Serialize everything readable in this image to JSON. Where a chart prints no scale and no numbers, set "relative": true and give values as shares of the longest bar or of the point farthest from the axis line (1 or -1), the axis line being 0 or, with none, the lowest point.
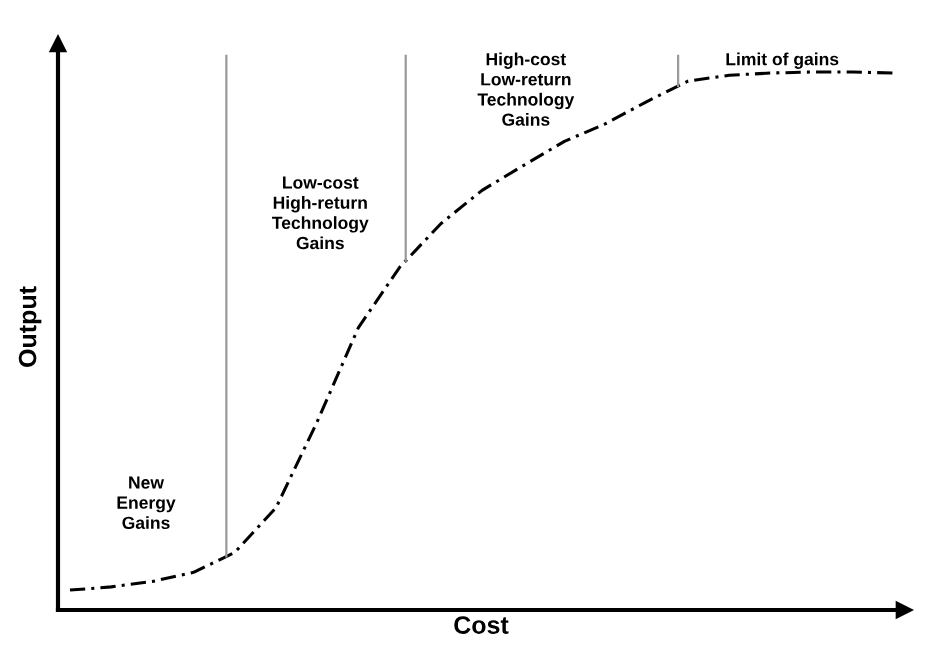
{
  "chart_data": {
    "type": "line",
    "relative": true,
    "xlabel": "Cost",
    "ylabel": "Output",
    "categories": [
      null,
      null,
      null,
      null,
      null,
      null,
      null,
      null,
      null,
      null,
      null,
      null,
      null,
      null,
      null,
      null,
      null,
      null,
      null,
      null,
      null
    ],
    "series": [
      {
        "color": "#000000",
        "values": [
          0.037,
          0.043,
          0.053,
          0.07,
          0.107,
          0.19,
          0.35,
          0.525,
          0.637,
          0.718,
          0.78,
          0.826,
          0.871,
          0.904,
          0.945,
          0.983,
          0.994,
          0.998,
          1.0,
          1.0,
          0.998
        ]
      }
    ],
    "line_style": "dashed",
    "marker": "none",
    "grid": false,
    "legend": false,
    "tick_labels": false,
    "annotations": [
      "New\nEnergy\nGains",
      "Low-cost\nHigh-return\nTechnology\nGains",
      "High-cost\nLow-return\nTechnology\nGains",
      "Limit of gains"
    ]
  }
}
